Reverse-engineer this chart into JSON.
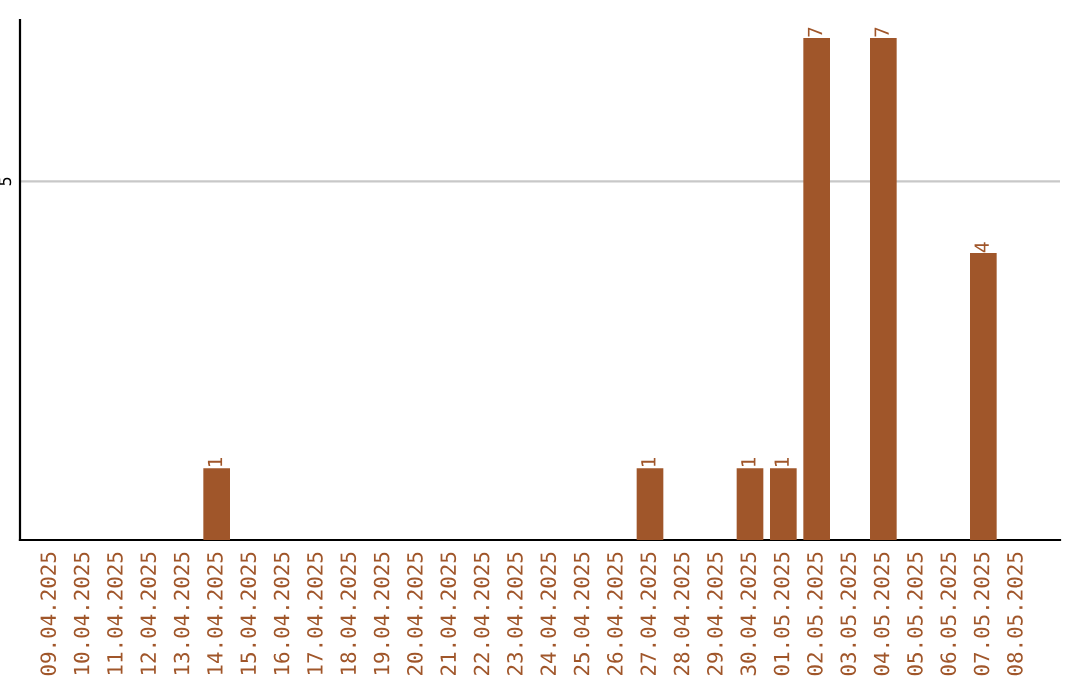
{
  "chart_data": {
    "type": "bar",
    "categories": [
      "09.04.2025",
      "10.04.2025",
      "11.04.2025",
      "12.04.2025",
      "13.04.2025",
      "14.04.2025",
      "15.04.2025",
      "16.04.2025",
      "17.04.2025",
      "18.04.2025",
      "19.04.2025",
      "20.04.2025",
      "21.04.2025",
      "22.04.2025",
      "23.04.2025",
      "24.04.2025",
      "25.04.2025",
      "26.04.2025",
      "27.04.2025",
      "28.04.2025",
      "29.04.2025",
      "30.04.2025",
      "01.05.2025",
      "02.05.2025",
      "03.05.2025",
      "04.05.2025",
      "05.05.2025",
      "06.05.2025",
      "07.05.2025",
      "08.05.2025"
    ],
    "values": [
      0,
      0,
      0,
      0,
      0,
      1,
      0,
      0,
      0,
      0,
      0,
      0,
      0,
      0,
      0,
      0,
      0,
      0,
      1,
      0,
      0,
      1,
      1,
      7,
      0,
      7,
      0,
      0,
      4,
      0
    ],
    "value_labels": [
      null,
      null,
      null,
      null,
      null,
      "1",
      null,
      null,
      null,
      null,
      null,
      null,
      null,
      null,
      null,
      null,
      null,
      null,
      "1",
      null,
      null,
      "1",
      "1",
      "7",
      null,
      "7",
      null,
      null,
      "4",
      null
    ],
    "color": "#a0562a",
    "ylim": [
      0,
      7.25
    ],
    "yticks": [
      5
    ],
    "grid": "y"
  }
}
